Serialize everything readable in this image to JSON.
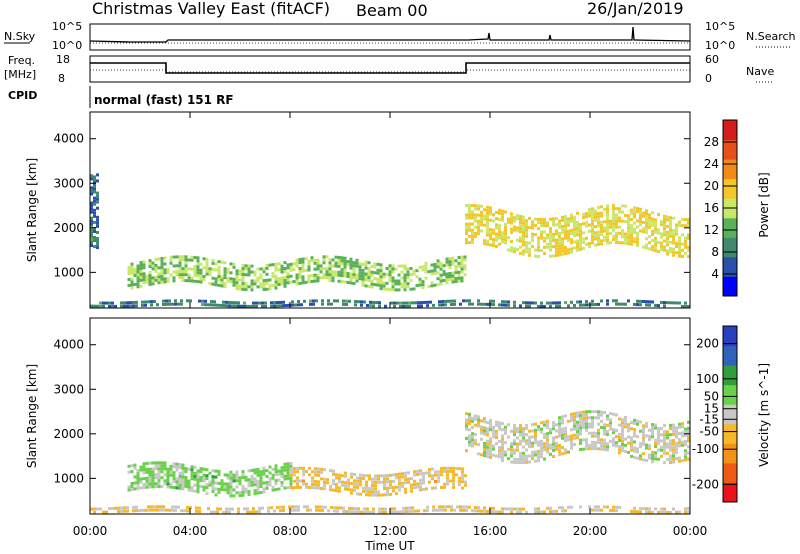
{
  "header": {
    "station": "Christmas Valley East (fitACF)",
    "beam": "Beam 00",
    "date": "26/Jan/2019"
  },
  "meta_panels": {
    "nsky_label": "N.Sky",
    "nsky_ticks": [
      "10^5",
      "10^0"
    ],
    "nsearch_label": "N.Search",
    "nsearch_ticks": [
      "10^5",
      "10^0"
    ],
    "freq_label": "Freq.",
    "freq_unit": "[MHz]",
    "freq_ticks": [
      "18",
      "8"
    ],
    "nave_label": "Nave",
    "nave_ticks": [
      "60",
      "0"
    ],
    "cpid_label": "CPID",
    "cpid_value": "normal (fast) 151 RF"
  },
  "colors": {
    "power_scale": [
      "#0000ff",
      "#2a50a8",
      "#3f8a6c",
      "#5ab15a",
      "#c9e86a",
      "#f3c629",
      "#f28a19",
      "#e8501a",
      "#d21e1e"
    ],
    "velocity_scale": [
      "#e8141a",
      "#ee5a12",
      "#f4911a",
      "#f6b92a",
      "#c8c8c8",
      "#6ad14a",
      "#2f9f3c",
      "#2f62b8",
      "#2a3fbf"
    ]
  },
  "chart_data": [
    {
      "type": "heatmap",
      "name": "power",
      "xlabel": "",
      "ylabel": "Slant Range [km]",
      "x_ticks": [
        "00:00",
        "04:00",
        "08:00",
        "12:00",
        "16:00",
        "20:00",
        "00:00"
      ],
      "y_ticks": [
        1000,
        2000,
        3000,
        4000
      ],
      "ylim": [
        200,
        4600
      ],
      "colorbar": {
        "label": "Power [dB]",
        "ticks": [
          4,
          8,
          12,
          16,
          20,
          24,
          28
        ],
        "range": [
          0,
          32
        ]
      },
      "echo_regions": [
        {
          "t": [
            1.5,
            15.0
          ],
          "range_km": [
            700,
            1300
          ],
          "value": 14
        },
        {
          "t": [
            15.0,
            24.0
          ],
          "range_km": [
            1500,
            2400
          ],
          "value": 18
        },
        {
          "t": [
            0.0,
            24.0
          ],
          "range_km": [
            250,
            400
          ],
          "value": 8
        },
        {
          "t": [
            0.0,
            0.3
          ],
          "range_km": [
            1800,
            3500
          ],
          "value": 8
        }
      ]
    },
    {
      "type": "heatmap",
      "name": "velocity",
      "xlabel": "Time UT",
      "ylabel": "Slant Range [km]",
      "x_ticks": [
        "00:00",
        "04:00",
        "08:00",
        "12:00",
        "16:00",
        "20:00",
        "00:00"
      ],
      "y_ticks": [
        1000,
        2000,
        3000,
        4000
      ],
      "ylim": [
        200,
        4600
      ],
      "colorbar": {
        "label": "Velocity [m s^-1]",
        "ticks": [
          -200,
          -100,
          -50,
          -15,
          15,
          50,
          100,
          200
        ],
        "range": [
          -250,
          250
        ]
      },
      "echo_regions": [
        {
          "t": [
            1.5,
            8.0
          ],
          "range_km": [
            700,
            1300
          ],
          "value": 40
        },
        {
          "t": [
            8.0,
            15.0
          ],
          "range_km": [
            700,
            1200
          ],
          "value": -40
        },
        {
          "t": [
            15.0,
            24.0
          ],
          "range_km": [
            1500,
            2400
          ],
          "value": 0
        },
        {
          "t": [
            0.0,
            24.0
          ],
          "range_km": [
            250,
            400
          ],
          "value": -30
        }
      ]
    }
  ]
}
